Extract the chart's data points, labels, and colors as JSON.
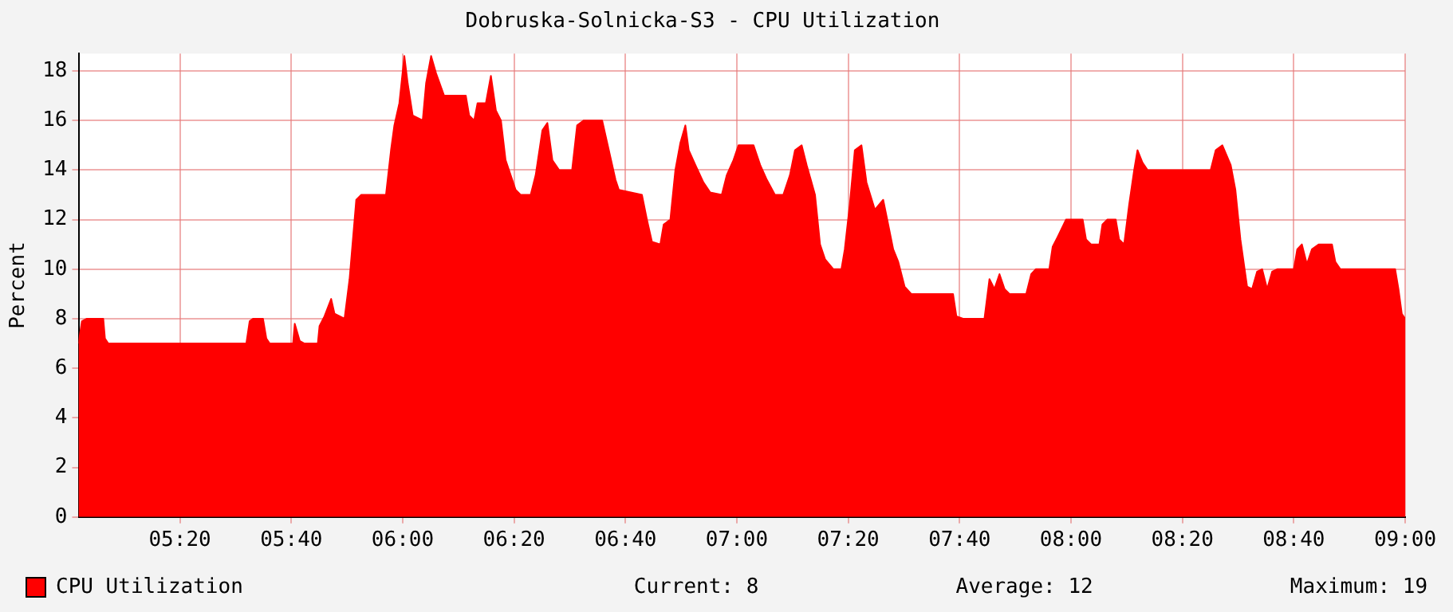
{
  "chart_data": {
    "type": "area",
    "title": "Dobruska-Solnicka-S3 - CPU Utilization",
    "ylabel": "Percent",
    "xlim": [
      5.03,
      9.0
    ],
    "ylim": [
      0,
      18.7
    ],
    "xticks": [
      {
        "value": 5.3333,
        "label": "05:20"
      },
      {
        "value": 5.6667,
        "label": "05:40"
      },
      {
        "value": 6,
        "label": "06:00"
      },
      {
        "value": 6.3333,
        "label": "06:20"
      },
      {
        "value": 6.6667,
        "label": "06:40"
      },
      {
        "value": 7,
        "label": "07:00"
      },
      {
        "value": 7.3333,
        "label": "07:20"
      },
      {
        "value": 7.6667,
        "label": "07:40"
      },
      {
        "value": 8,
        "label": "08:00"
      },
      {
        "value": 8.3333,
        "label": "08:20"
      },
      {
        "value": 8.6667,
        "label": "08:40"
      },
      {
        "value": 9,
        "label": "09:00"
      }
    ],
    "yticks": [
      0,
      2,
      4,
      6,
      8,
      10,
      12,
      14,
      16,
      18
    ],
    "grid": true,
    "legend": "bottom",
    "marker": "none",
    "annotations": [
      "Current: 8",
      "Average: 12",
      "Maximum: 19"
    ],
    "series": [
      {
        "name": "CPU Utilization",
        "color": "#ff0000",
        "x": [
          5.03,
          5.04,
          5.055,
          5.104,
          5.109,
          5.119,
          5.532,
          5.542,
          5.552,
          5.582,
          5.592,
          5.602,
          5.672,
          5.677,
          5.692,
          5.706,
          5.746,
          5.751,
          5.766,
          5.786,
          5.796,
          5.826,
          5.841,
          5.861,
          5.876,
          5.95,
          5.965,
          5.975,
          5.99,
          6.005,
          6.015,
          6.03,
          6.06,
          6.07,
          6.085,
          6.1,
          6.124,
          6.189,
          6.199,
          6.214,
          6.224,
          6.249,
          6.264,
          6.279,
          6.294,
          6.308,
          6.338,
          6.353,
          6.383,
          6.398,
          6.418,
          6.433,
          6.448,
          6.468,
          6.507,
          6.522,
          6.542,
          6.597,
          6.617,
          6.637,
          6.647,
          6.716,
          6.731,
          6.746,
          6.771,
          6.781,
          6.801,
          6.816,
          6.831,
          6.846,
          6.856,
          6.876,
          6.9,
          6.92,
          6.955,
          6.97,
          6.99,
          7.005,
          7.05,
          7.07,
          7.09,
          7.114,
          7.139,
          7.159,
          7.174,
          7.194,
          7.209,
          7.234,
          7.249,
          7.264,
          7.289,
          7.313,
          7.323,
          7.338,
          7.353,
          7.373,
          7.388,
          7.413,
          7.438,
          7.453,
          7.468,
          7.483,
          7.502,
          7.522,
          7.647,
          7.657,
          7.677,
          7.741,
          7.756,
          7.771,
          7.786,
          7.801,
          7.816,
          7.866,
          7.881,
          7.895,
          7.935,
          7.945,
          7.96,
          7.985,
          8.035,
          8.045,
          8.06,
          8.085,
          8.094,
          8.109,
          8.134,
          8.144,
          8.159,
          8.174,
          8.189,
          8.199,
          8.214,
          8.229,
          8.418,
          8.433,
          8.453,
          8.478,
          8.492,
          8.507,
          8.527,
          8.542,
          8.557,
          8.572,
          8.587,
          8.602,
          8.617,
          8.667,
          8.677,
          8.691,
          8.706,
          8.721,
          8.741,
          8.781,
          8.791,
          8.806,
          8.97,
          8.98,
          8.99,
          9.0
        ],
        "values": [
          7,
          7.9,
          8,
          8,
          7.2,
          7,
          7,
          7.9,
          8,
          8,
          7.2,
          7,
          7,
          7.8,
          7.1,
          7,
          7,
          7.7,
          8.1,
          8.8,
          8.2,
          8,
          9.6,
          12.8,
          13,
          13,
          14.8,
          15.8,
          16.7,
          18.6,
          17.5,
          16.2,
          16,
          17.5,
          18.6,
          17.9,
          17,
          17,
          16.2,
          16,
          16.7,
          16.7,
          17.8,
          16.4,
          16,
          14.4,
          13.2,
          13,
          13,
          13.8,
          15.6,
          15.9,
          14.4,
          14,
          14,
          15.8,
          16,
          16,
          14.8,
          13.6,
          13.2,
          13,
          12,
          11.1,
          11,
          11.8,
          12,
          14,
          15.1,
          15.8,
          14.8,
          14.2,
          13.5,
          13.1,
          13,
          13.8,
          14.4,
          15,
          15,
          14.2,
          13.6,
          13,
          13,
          13.8,
          14.8,
          15,
          14.2,
          13,
          11,
          10.4,
          10,
          10,
          10.8,
          12.6,
          14.8,
          15,
          13.5,
          12.4,
          12.8,
          11.8,
          10.8,
          10.3,
          9.3,
          9,
          9,
          8.1,
          8,
          8,
          9.6,
          9.2,
          9.8,
          9.2,
          9,
          9,
          9.8,
          10,
          10,
          10.9,
          11.3,
          12,
          12,
          11.2,
          11,
          11,
          11.8,
          12,
          12,
          11.2,
          11,
          12.6,
          14,
          14.8,
          14.3,
          14,
          14,
          14.8,
          15,
          14.2,
          13.2,
          11.2,
          9.3,
          9.2,
          9.9,
          10,
          9.2,
          9.9,
          10,
          10,
          10.8,
          11,
          10.2,
          10.8,
          11,
          11,
          10.3,
          10,
          10,
          9.2,
          8.2,
          8
        ]
      }
    ]
  }
}
